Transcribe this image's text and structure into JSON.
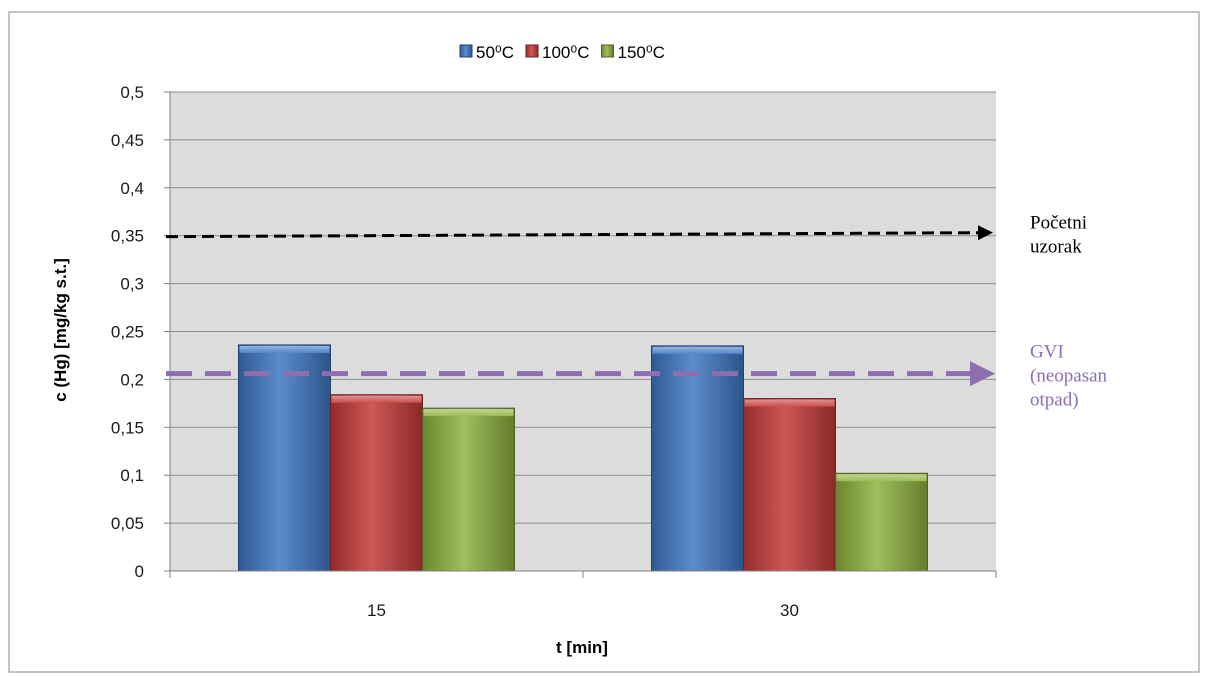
{
  "chart_data": {
    "type": "bar",
    "categories": [
      "15",
      "30"
    ],
    "series": [
      {
        "name": "50⁰C",
        "values": [
          0.236,
          0.235
        ],
        "color": "#3f78c4"
      },
      {
        "name": "100⁰C",
        "values": [
          0.184,
          0.18
        ],
        "color": "#c43b38"
      },
      {
        "name": "150⁰C",
        "values": [
          0.17,
          0.102
        ],
        "color": "#8fb33f"
      }
    ],
    "title": "",
    "xlabel": "t [min]",
    "ylabel": "c (Hg) [mg/kg s.t.]",
    "ylim": [
      0,
      0.5
    ],
    "yticks": [
      0,
      0.05,
      0.1,
      0.15,
      0.2,
      0.25,
      0.3,
      0.35,
      0.4,
      0.45,
      0.5
    ],
    "ytick_labels": [
      "0",
      "0,05",
      "0,1",
      "0,15",
      "0,2",
      "0,25",
      "0,3",
      "0,35",
      "0,4",
      "0,45",
      "0,5"
    ],
    "grid": true,
    "legend_position": "top",
    "reference_lines": [
      {
        "value": 0.349,
        "color": "#000000",
        "label_lines": [
          "Početni",
          "uzorak"
        ]
      },
      {
        "value": 0.206,
        "color": "#8d6fb0",
        "label_lines": [
          "GVI",
          "(neopasan",
          "otpad)"
        ]
      }
    ],
    "plot_background": "#dcdcdc"
  }
}
